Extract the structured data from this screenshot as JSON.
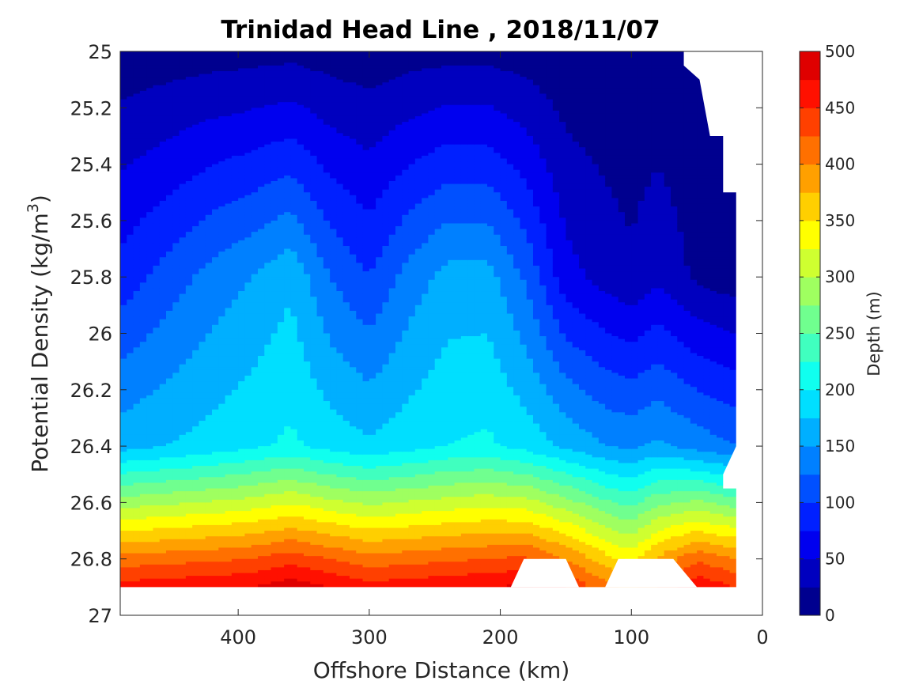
{
  "chart_data": {
    "type": "contour",
    "title": "Trinidad Head Line , 2018/11/07",
    "xlabel": "Offshore Distance (km)",
    "ylabel_prefix": "Potential Density (kg/m",
    "ylabel_sup": "3",
    "ylabel_suffix": ")",
    "xlim": [
      490,
      0
    ],
    "ylim": [
      25,
      27
    ],
    "x_reversed": true,
    "y_reversed": true,
    "x_ticks": [
      400,
      300,
      200,
      100,
      0
    ],
    "y_ticks": [
      25,
      25.2,
      25.4,
      25.6,
      25.8,
      26,
      26.2,
      26.4,
      26.6,
      26.8,
      27
    ],
    "y_tick_labels": [
      "25",
      "25.2",
      "25.4",
      "25.6",
      "25.8",
      "26",
      "26.2",
      "26.4",
      "26.6",
      "26.8",
      "27"
    ],
    "colorbar": {
      "label": "Depth (m)",
      "range": [
        0,
        500
      ],
      "levels_step": 25,
      "ticks": [
        0,
        50,
        100,
        150,
        200,
        250,
        300,
        350,
        400,
        450,
        500
      ],
      "colors": [
        "#00008f",
        "#0000bf",
        "#0000ef",
        "#0020ff",
        "#0050ff",
        "#0080ff",
        "#00afff",
        "#00dfff",
        "#10ffef",
        "#40ffbf",
        "#70ff8f",
        "#9fff60",
        "#cfff30",
        "#ffff00",
        "#ffcf00",
        "#ffa000",
        "#ff7000",
        "#ff4000",
        "#ff1000",
        "#df0000",
        "#af0000"
      ]
    },
    "grid": false,
    "data_extent": {
      "x_range_km": [
        490,
        20
      ],
      "sigma_max": 26.9
    },
    "isopycnal_depth_profile": {
      "distance_km": [
        490,
        455,
        420,
        390,
        360,
        330,
        300,
        270,
        240,
        210,
        180,
        150,
        120,
        100,
        80,
        50,
        20
      ],
      "depth_at_sigma_25_8_m": [
        85,
        110,
        135,
        150,
        170,
        125,
        100,
        135,
        160,
        160,
        120,
        60,
        40,
        30,
        45,
        20,
        10
      ],
      "depth_at_sigma_26_4_m": [
        165,
        175,
        185,
        195,
        205,
        190,
        180,
        190,
        200,
        205,
        190,
        170,
        150,
        145,
        155,
        140,
        125
      ],
      "depth_at_sigma_26_8_m": [
        410,
        415,
        420,
        425,
        440,
        425,
        410,
        415,
        420,
        425,
        430,
        400,
        360,
        340,
        380,
        420,
        400
      ]
    },
    "blank_regions": [
      "upper-right notch (x 60 to 0 km, sigma 25.0 to 26.5)",
      "bottom band below sigma 26.9",
      "notch near 190-140 km below sigma 26.8",
      "notch near 120-50 km below sigma 26.8"
    ]
  }
}
